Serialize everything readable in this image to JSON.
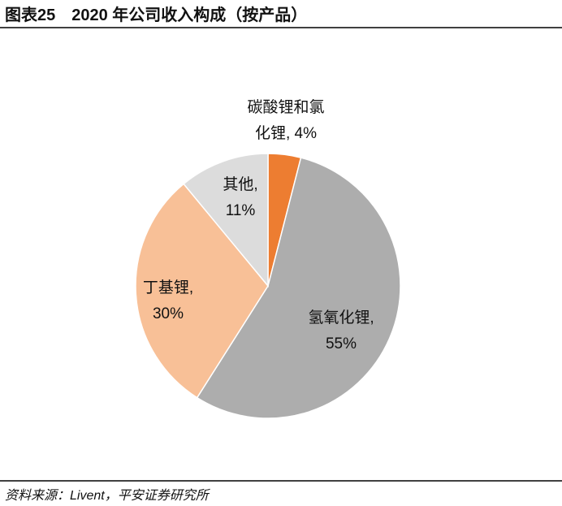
{
  "chart_data": {
    "type": "pie",
    "title": "图表25　2020 年公司收入构成（按产品）",
    "categories": [
      "碳酸锂和氯化锂,",
      "氢氧化锂,",
      "丁基锂,",
      "其他,"
    ],
    "values": [
      4,
      55,
      30,
      11
    ],
    "value_labels": [
      "4%",
      "55%",
      "30%",
      "11%"
    ],
    "colors": [
      "#ed7d31",
      "#adadad",
      "#f8c097",
      "#dcdcdc"
    ],
    "source": "资料来源：Livent，平安证券研究所"
  }
}
